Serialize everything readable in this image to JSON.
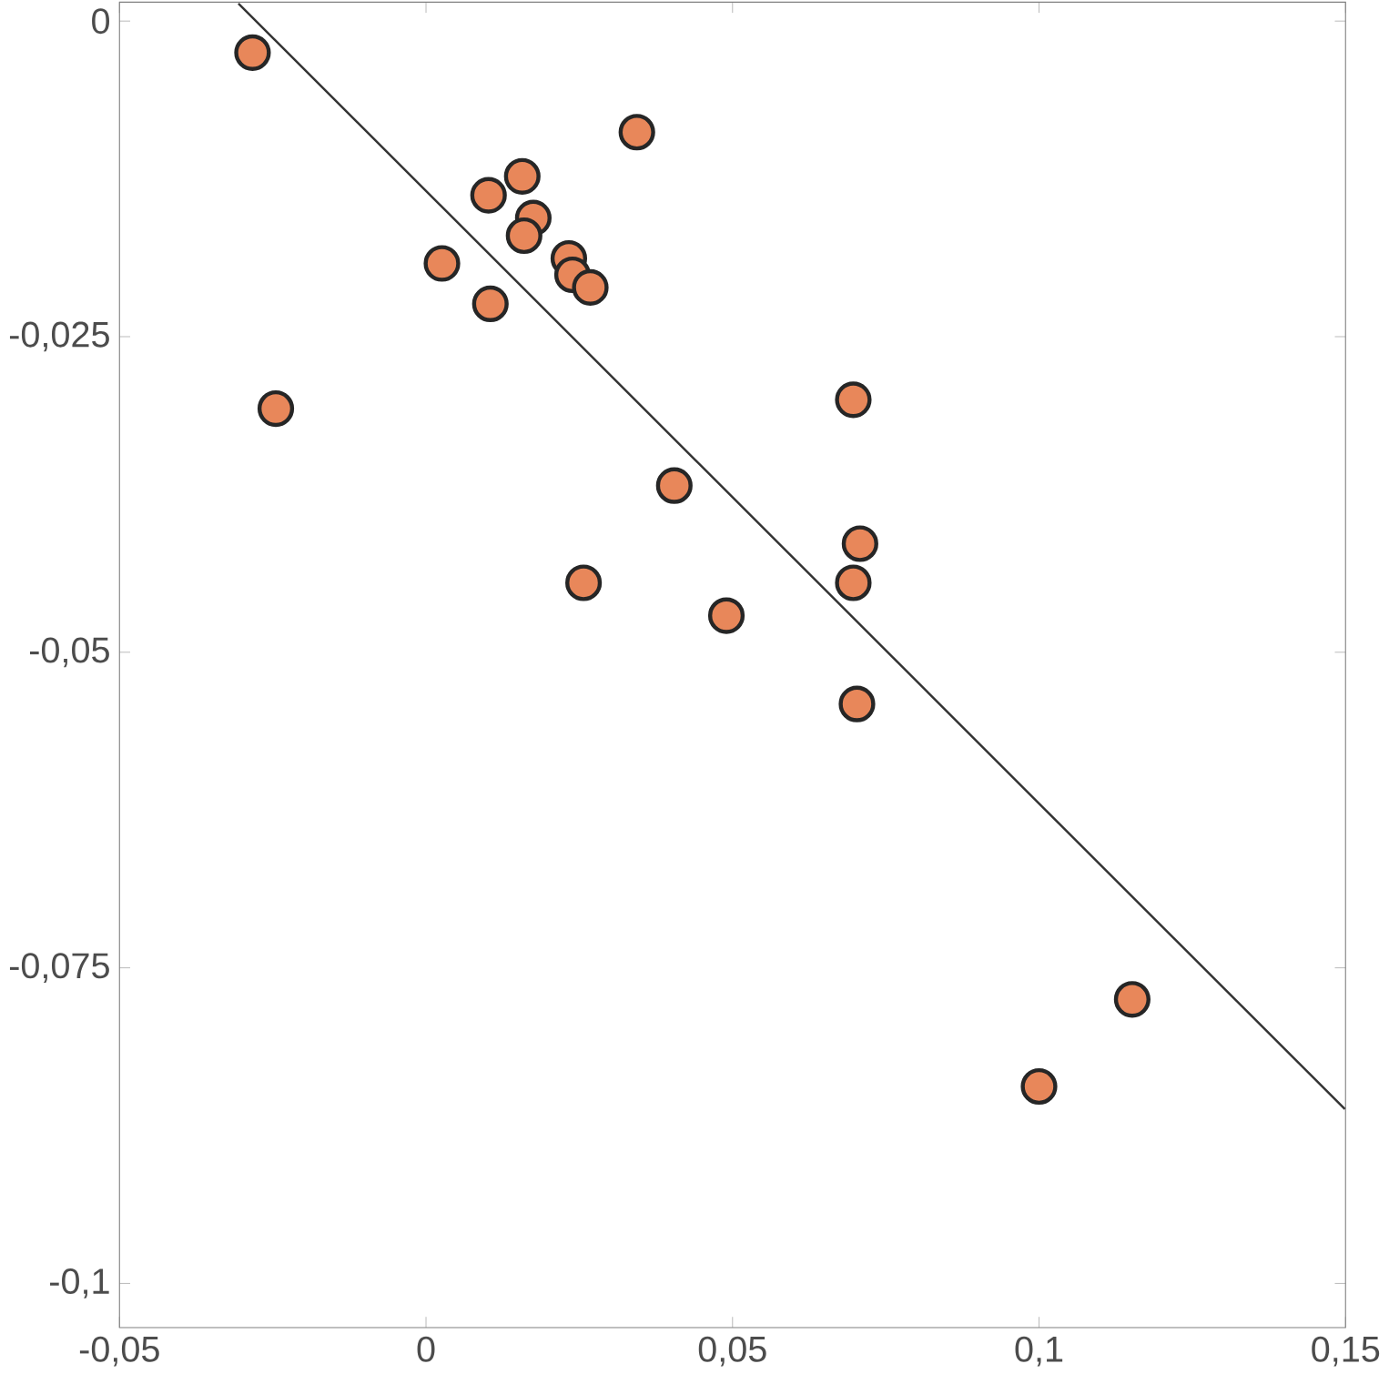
{
  "chart_data": {
    "type": "scatter",
    "marker": "circle",
    "xlim": [
      -0.05,
      0.15
    ],
    "ylim": [
      -0.1035,
      0.0015
    ],
    "xticks": [
      {
        "value": -0.05,
        "label": "-0,05"
      },
      {
        "value": 0,
        "label": "0"
      },
      {
        "value": 0.05,
        "label": "0,05"
      },
      {
        "value": 0.1,
        "label": "0,1"
      },
      {
        "value": 0.15,
        "label": "0,15"
      }
    ],
    "yticks": [
      {
        "value": 0,
        "label": "0"
      },
      {
        "value": -0.025,
        "label": "-0,025"
      },
      {
        "value": -0.05,
        "label": "-0,05"
      },
      {
        "value": -0.075,
        "label": "-0,075"
      },
      {
        "value": -0.1,
        "label": "-0,1"
      }
    ],
    "series": [
      {
        "color": "#e8875a",
        "x": [
          -0.0283,
          0.0344,
          0.0157,
          0.0102,
          0.0175,
          0.016,
          0.0026,
          0.0233,
          0.0239,
          0.0268,
          0.0105,
          -0.0245,
          0.0697,
          0.0405,
          0.0708,
          0.0697,
          0.0257,
          0.049,
          0.0703,
          0.1152,
          0.1
        ],
        "values": [
          -0.0025,
          -0.0088,
          -0.0123,
          -0.0138,
          -0.0156,
          -0.017,
          -0.0192,
          -0.0188,
          -0.0201,
          -0.0211,
          -0.0224,
          -0.0307,
          -0.03,
          -0.0368,
          -0.0414,
          -0.0445,
          -0.0445,
          -0.0471,
          -0.0541,
          -0.0775,
          -0.0844
        ]
      },
      {
        "type": "line",
        "marker": "none",
        "color": "#333333",
        "x": [
          -0.0306,
          0.1499
        ],
        "values": [
          0.0014,
          -0.0862
        ]
      }
    ]
  }
}
